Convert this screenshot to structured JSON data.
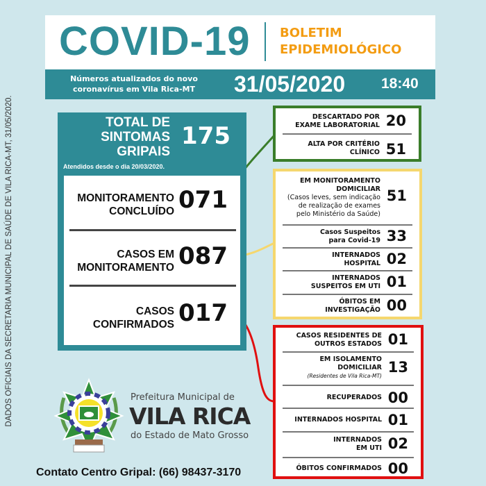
{
  "side_note": "DADOS OFICIAIS DA SECRETARIA MUNICIPAL DE SAÚDE DE VILA RICA-MT, 31/05/2020.",
  "header": {
    "title": "COVID-19",
    "subtitle_1": "BOLETIM",
    "subtitle_2": "EPIDEMIOLÓGICO",
    "update_1": "Números atualizados do novo",
    "update_2": "coronavírus em Vila Rica-MT",
    "date": "31/05/2020",
    "time": "18:40"
  },
  "total": {
    "l1": "TOTAL DE",
    "l2": "SINTOMAS",
    "l3": "GRIPAIS",
    "value": "175",
    "note": "Atendidos desde o dia 20/03/2020."
  },
  "main": [
    {
      "l1": "MONITORAMENTO",
      "l2": "CONCLUÍDO",
      "value": "071"
    },
    {
      "l1": "CASOS EM",
      "l2": "MONITORAMENTO",
      "value": "087"
    },
    {
      "l1": "CASOS",
      "l2": "CONFIRMADOS",
      "value": "017"
    }
  ],
  "green": [
    {
      "l1": "DESCARTADO POR",
      "l2": "EXAME LABORATORIAL",
      "value": "20"
    },
    {
      "l1": "ALTA POR CRITÉRIO",
      "l2": "CLÍNICO",
      "value": "51"
    }
  ],
  "yellow": [
    {
      "l1": "EM MONITORAMENTO",
      "l2": "DOMICILIAR",
      "n1": "(Casos leves, sem indicação",
      "n2": "de realização de exames",
      "n3": "pelo Ministério da Saúde)",
      "value": "51"
    },
    {
      "l1": "Casos Suspeitos",
      "l2": "para Covid-19",
      "value": "33"
    },
    {
      "l1": "INTERNADOS",
      "l2": "HOSPITAL",
      "value": "02"
    },
    {
      "l1": "INTERNADOS",
      "l2": "SUSPEITOS EM UTI",
      "value": "01"
    },
    {
      "l1": "ÓBITOS EM",
      "l2": "INVESTIGAÇÃO",
      "value": "00"
    }
  ],
  "red": [
    {
      "l1": "CASOS RESIDENTES DE",
      "l2": "OUTROS ESTADOS",
      "value": "01"
    },
    {
      "l1": "EM ISOLAMENTO",
      "l2": "DOMICILIAR",
      "n1": "(Residentes de Vila Rica-MT)",
      "value": "13"
    },
    {
      "l1": "RECUPERADOS",
      "value": "00"
    },
    {
      "l1": "INTERNADOS HOSPITAL",
      "value": "01"
    },
    {
      "l1": "INTERNADOS",
      "l2": "EM UTI",
      "value": "02"
    },
    {
      "l1": "ÓBITOS CONFIRMADOS",
      "value": "00"
    }
  ],
  "logo": {
    "pref": "Prefeitura Municipal de",
    "name": "VILA RICA",
    "state": "do Estado de Mato Grosso",
    "seal_text": "VILA RICA"
  },
  "contact": "Contato Centro Gripal: (66) 98437-3170",
  "colors": {
    "teal": "#2e8b96",
    "orange": "#f39c12",
    "green": "#3a7d2a",
    "yellow": "#f5d76e",
    "red": "#e01010",
    "background": "#cfe7ec"
  }
}
